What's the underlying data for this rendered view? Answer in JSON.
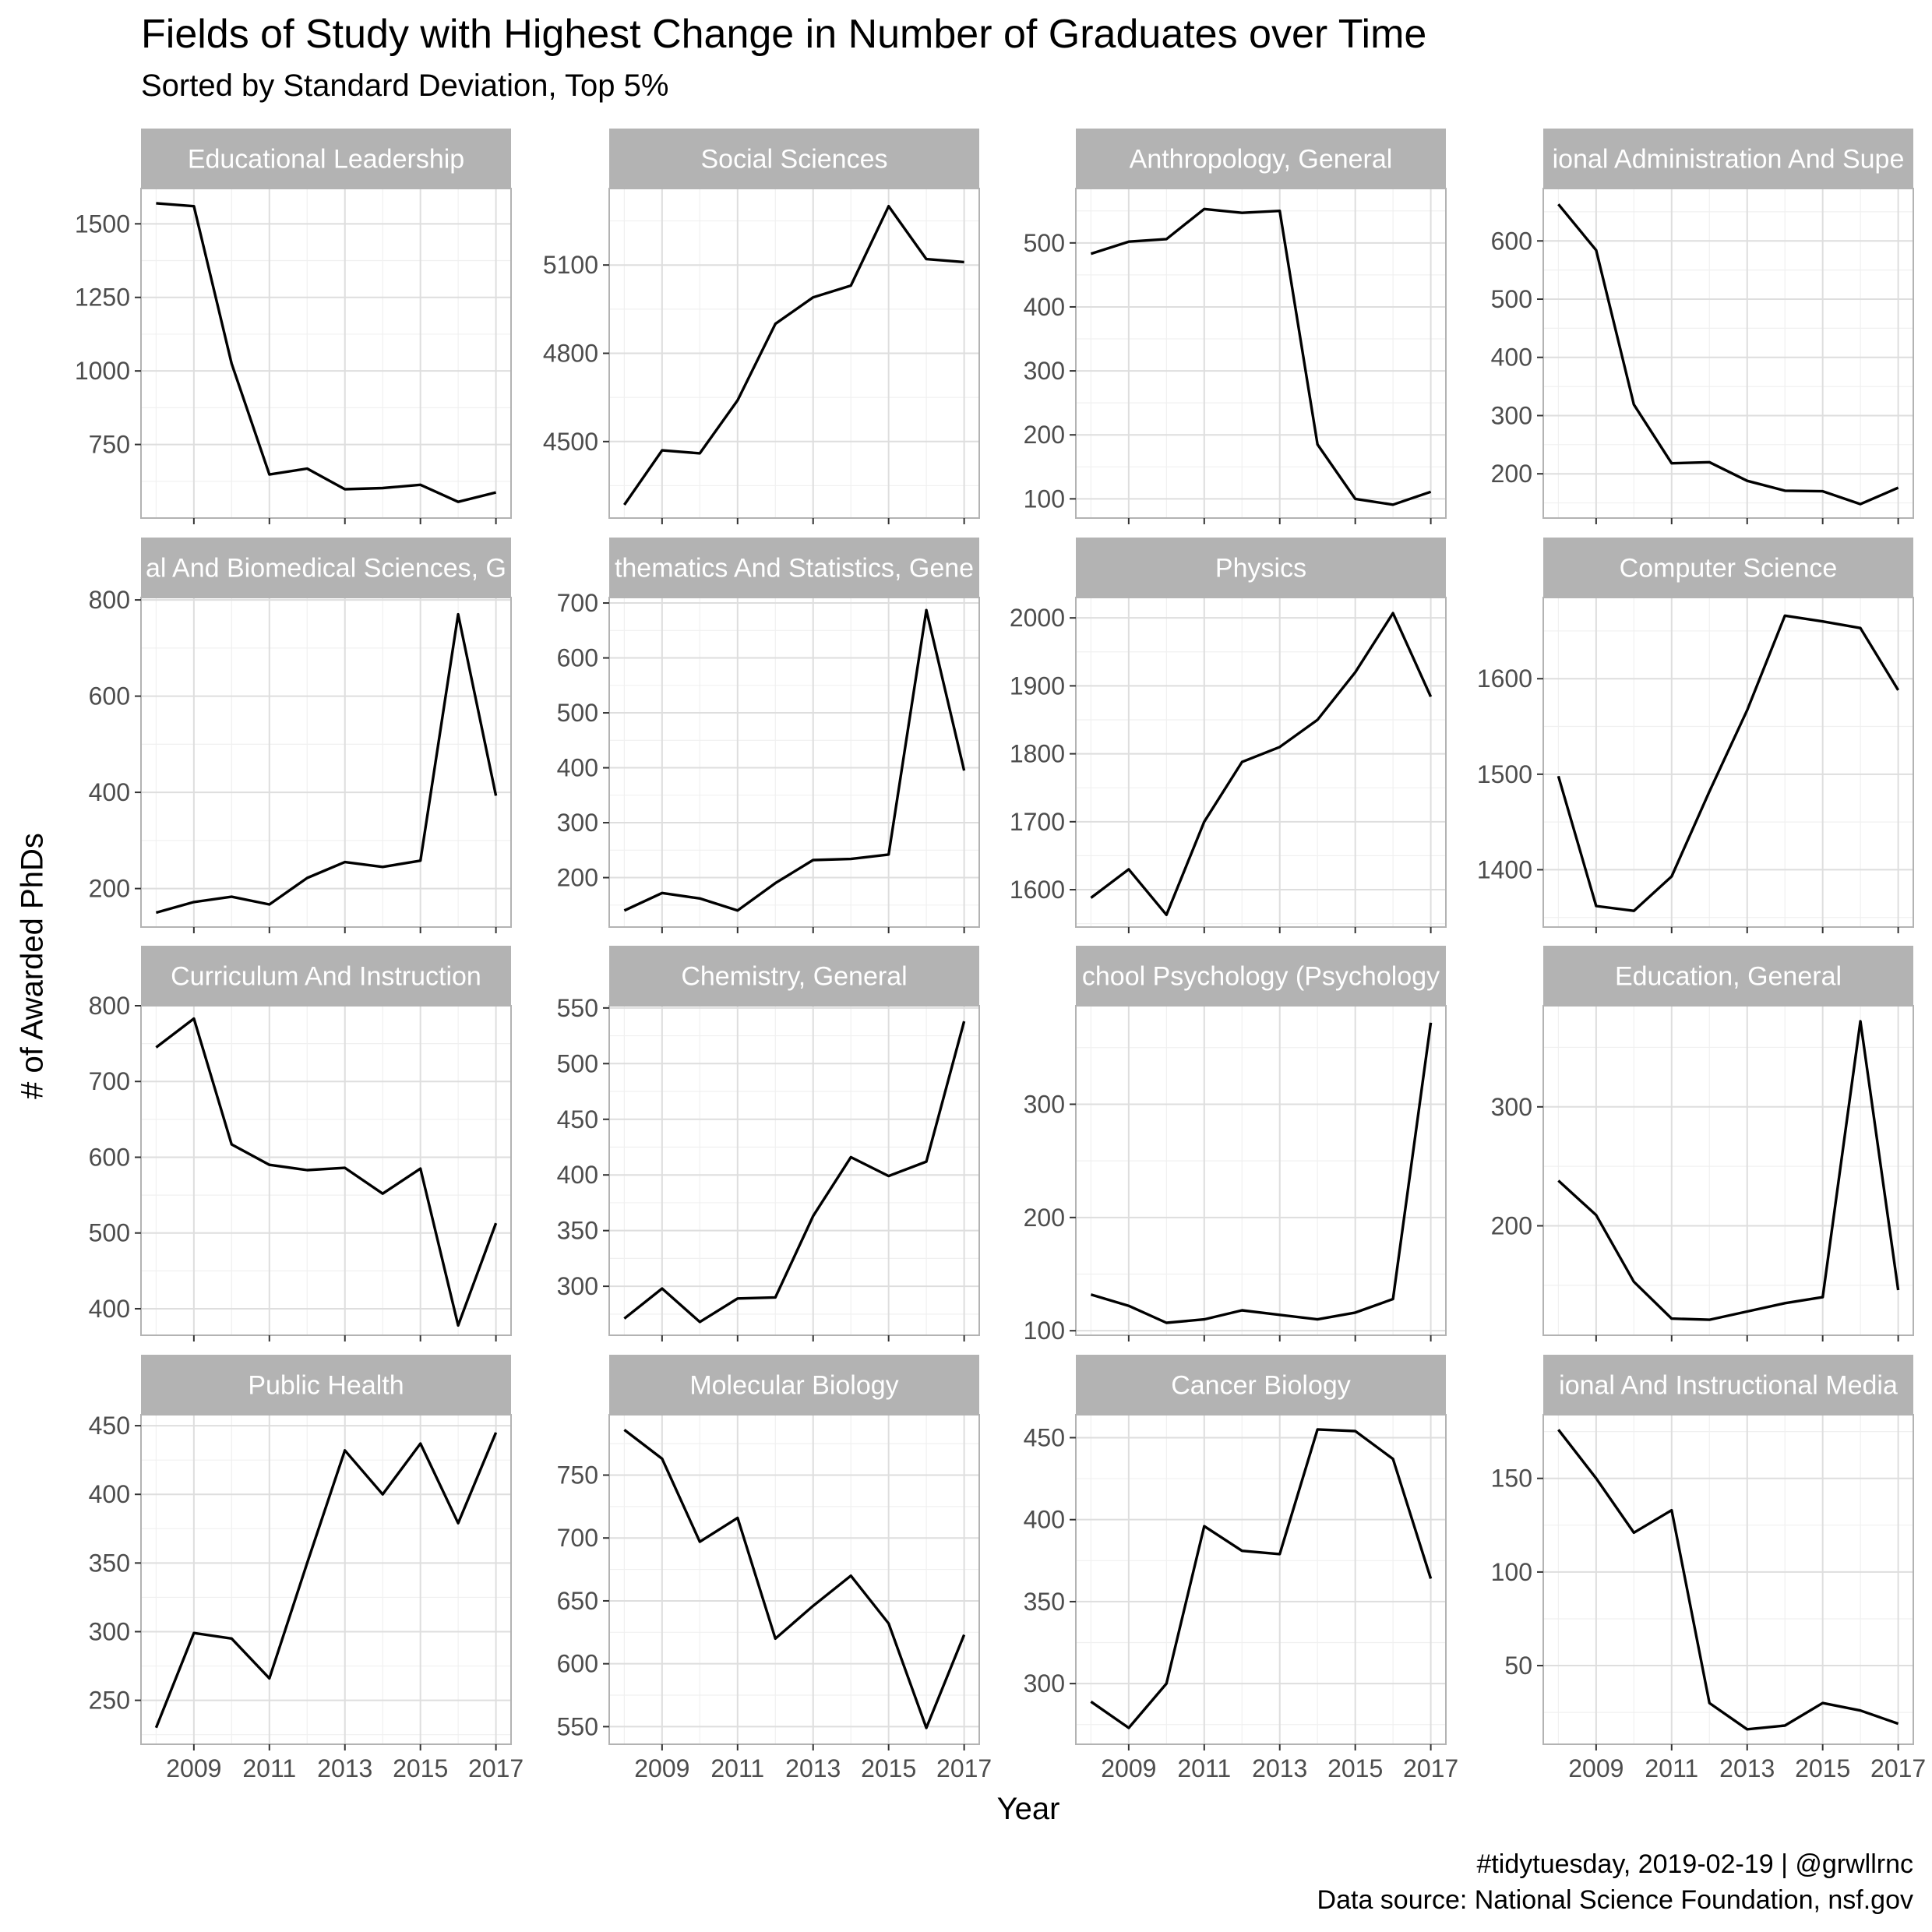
{
  "chart_data": {
    "type": "line",
    "title": "Fields of Study with Highest Change in Number of Graduates over Time",
    "subtitle": "Sorted by Standard Deviation, Top 5%",
    "xlabel": "Year",
    "ylabel": "# of Awarded PhDs",
    "caption": [
      "#tidytuesday, 2019-02-19 | @grwllrnc",
      "Data source: National Science Foundation, nsf.gov"
    ],
    "x": [
      2008,
      2009,
      2010,
      2011,
      2012,
      2013,
      2014,
      2015,
      2016,
      2017
    ],
    "x_ticks": [
      2009,
      2011,
      2013,
      2015,
      2017
    ],
    "xlim": [
      2007.6,
      2017.4
    ],
    "grid": true,
    "line_color": "#000000",
    "strip_color": "#b3b3b3",
    "panels": [
      {
        "name": "Educational Leadership",
        "strip_label": "Educational Leadership",
        "values": [
          1570,
          1560,
          1025,
          648,
          668,
          598,
          602,
          613,
          555,
          587
        ],
        "yticks": [
          750,
          1000,
          1250,
          1500
        ],
        "ylim": [
          500,
          1620
        ]
      },
      {
        "name": "Social Sciences",
        "strip_label": "Social Sciences",
        "values": [
          4285,
          4470,
          4460,
          4640,
          4900,
          4990,
          5030,
          5300,
          5120,
          5110
        ],
        "yticks": [
          4500,
          4800,
          5100
        ],
        "ylim": [
          4240,
          5360
        ]
      },
      {
        "name": "Anthropology, General",
        "strip_label": "Anthropology, General",
        "values": [
          483,
          502,
          506,
          553,
          547,
          550,
          185,
          100,
          91,
          111
        ],
        "yticks": [
          100,
          200,
          300,
          400,
          500
        ],
        "ylim": [
          70,
          585
        ]
      },
      {
        "name": "Educational Administration And Supervision",
        "strip_label": "ional Administration And Supe",
        "values": [
          663,
          584,
          319,
          218,
          220,
          188,
          171,
          170,
          148,
          176
        ],
        "yticks": [
          200,
          300,
          400,
          500,
          600
        ],
        "ylim": [
          124,
          690
        ]
      },
      {
        "name": "Biological And Biomedical Sciences, General",
        "strip_label": "al And Biomedical Sciences, G",
        "values": [
          150,
          172,
          183,
          167,
          222,
          255,
          245,
          258,
          770,
          393
        ],
        "yticks": [
          200,
          400,
          600,
          800
        ],
        "ylim": [
          120,
          805
        ]
      },
      {
        "name": "Mathematics And Statistics, General",
        "strip_label": "thematics And Statistics, Gene",
        "values": [
          140,
          172,
          162,
          140,
          190,
          232,
          234,
          242,
          687,
          395
        ],
        "yticks": [
          200,
          300,
          400,
          500,
          600,
          700
        ],
        "ylim": [
          110,
          710
        ]
      },
      {
        "name": "Physics",
        "strip_label": "Physics",
        "values": [
          1588,
          1630,
          1563,
          1700,
          1788,
          1810,
          1850,
          1920,
          2007,
          1884
        ],
        "yticks": [
          1600,
          1700,
          1800,
          1900,
          2000
        ],
        "ylim": [
          1545,
          2030
        ]
      },
      {
        "name": "Computer Science",
        "strip_label": "Computer Science",
        "values": [
          1498,
          1362,
          1357,
          1393,
          1482,
          1567,
          1666,
          1660,
          1653,
          1588
        ],
        "yticks": [
          1400,
          1500,
          1600
        ],
        "ylim": [
          1340,
          1685
        ]
      },
      {
        "name": "Curriculum And Instruction",
        "strip_label": "Curriculum And Instruction",
        "values": [
          745,
          783,
          617,
          590,
          583,
          586,
          552,
          585,
          378,
          513
        ],
        "yticks": [
          400,
          500,
          600,
          700,
          800
        ],
        "ylim": [
          365,
          800
        ]
      },
      {
        "name": "Chemistry, General",
        "strip_label": "Chemistry, General",
        "values": [
          271,
          298,
          268,
          289,
          290,
          363,
          416,
          399,
          412,
          538
        ],
        "yticks": [
          300,
          350,
          400,
          450,
          500,
          550
        ],
        "ylim": [
          256,
          552
        ]
      },
      {
        "name": "School Psychology (Psychology)",
        "strip_label": "chool Psychology (Psychology",
        "values": [
          132,
          122,
          107,
          110,
          118,
          114,
          110,
          116,
          128,
          372
        ],
        "yticks": [
          100,
          200,
          300
        ],
        "ylim": [
          96,
          387
        ]
      },
      {
        "name": "Education, General",
        "strip_label": "Education, General",
        "values": [
          238,
          209,
          153,
          122,
          121,
          128,
          135,
          140,
          372,
          146
        ],
        "yticks": [
          200,
          300
        ],
        "ylim": [
          108,
          385
        ]
      },
      {
        "name": "Public Health",
        "strip_label": "Public Health",
        "values": [
          230,
          299,
          295,
          266,
          350,
          432,
          400,
          437,
          379,
          445
        ],
        "yticks": [
          250,
          300,
          350,
          400,
          450
        ],
        "ylim": [
          218,
          458
        ]
      },
      {
        "name": "Molecular Biology",
        "strip_label": "Molecular Biology",
        "values": [
          786,
          763,
          697,
          716,
          620,
          646,
          670,
          632,
          549,
          623
        ],
        "yticks": [
          550,
          600,
          650,
          700,
          750
        ],
        "ylim": [
          536,
          798
        ]
      },
      {
        "name": "Cancer Biology",
        "strip_label": "Cancer Biology",
        "values": [
          289,
          273,
          300,
          396,
          381,
          379,
          455,
          454,
          437,
          364
        ],
        "yticks": [
          300,
          350,
          400,
          450
        ],
        "ylim": [
          263,
          464
        ]
      },
      {
        "name": "Educational And Instructional Media Design",
        "strip_label": "ional And Instructional Media",
        "values": [
          176,
          150,
          121,
          133,
          30,
          16,
          18,
          30,
          26,
          19
        ],
        "yticks": [
          50,
          100,
          150
        ],
        "ylim": [
          8,
          184
        ]
      }
    ]
  }
}
